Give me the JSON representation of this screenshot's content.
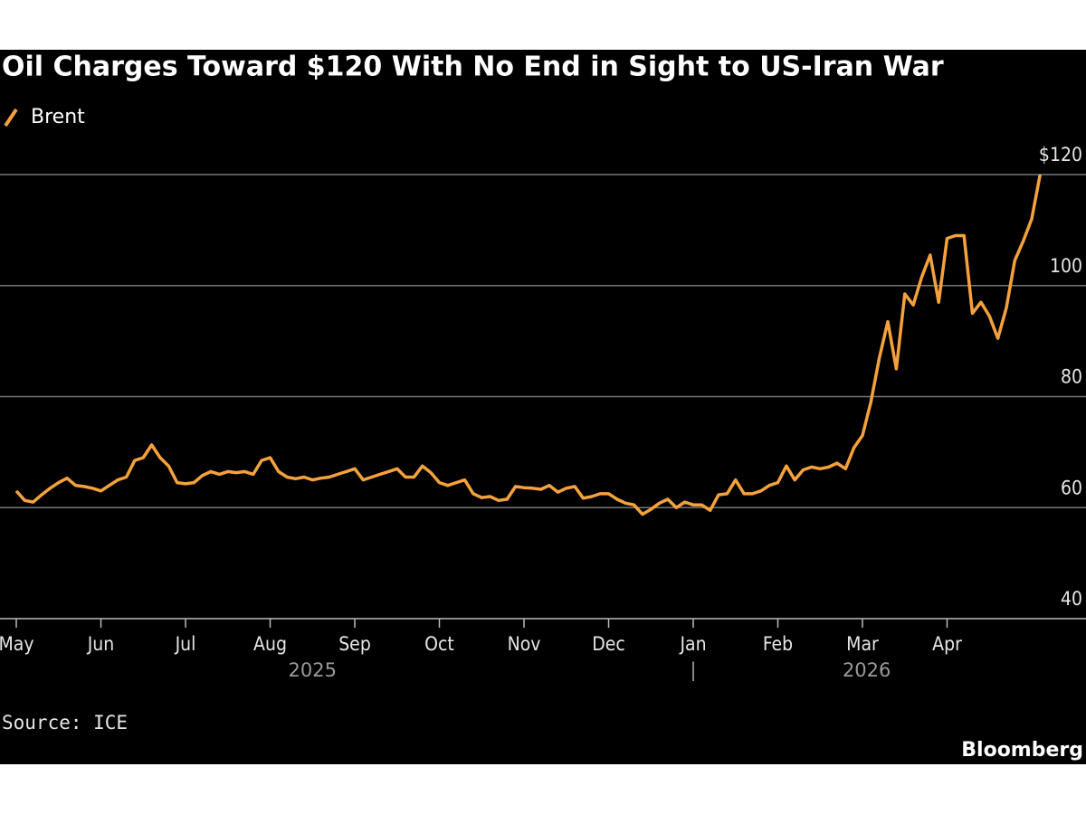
{
  "chart_data": {
    "type": "line",
    "title": "Oil Charges Toward $120 With No End in Sight to US-Iran War",
    "source": "Source: ICE",
    "brand": "Bloomberg",
    "categories": [
      "May",
      null,
      null,
      null,
      null,
      null,
      null,
      null,
      null,
      null,
      "Jun",
      null,
      null,
      null,
      null,
      null,
      null,
      null,
      null,
      null,
      "Jul",
      null,
      null,
      null,
      null,
      null,
      null,
      null,
      null,
      null,
      "Aug",
      null,
      null,
      null,
      null,
      null,
      null,
      null,
      null,
      null,
      "Sep",
      null,
      null,
      null,
      null,
      null,
      null,
      null,
      null,
      null,
      "Oct",
      null,
      null,
      null,
      null,
      null,
      null,
      null,
      null,
      null,
      "Nov",
      null,
      null,
      null,
      null,
      null,
      null,
      null,
      null,
      null,
      "Dec",
      null,
      null,
      null,
      null,
      null,
      null,
      null,
      null,
      null,
      "Jan",
      null,
      null,
      null,
      null,
      null,
      null,
      null,
      null,
      null,
      "Feb",
      null,
      null,
      null,
      null,
      null,
      null,
      null,
      null,
      null,
      "Mar",
      null,
      null,
      null,
      null,
      null,
      null,
      null,
      null,
      null,
      "Apr",
      null,
      null,
      null,
      null,
      null,
      null,
      null,
      null,
      null,
      null,
      null
    ],
    "x_group_labels": [
      "2025",
      "|",
      "2026"
    ],
    "series": [
      {
        "name": "Brent",
        "color": "#f5a23c",
        "values": [
          63,
          61.3,
          61,
          62.3,
          63.5,
          64.5,
          65.3,
          64,
          63.8,
          63.5,
          63,
          64,
          65,
          65.5,
          68.5,
          69,
          71.3,
          69,
          67.5,
          64.5,
          64.3,
          64.5,
          65.8,
          66.5,
          66,
          66.5,
          66.3,
          66.5,
          66,
          68.5,
          69,
          66.5,
          65.5,
          65.2,
          65.5,
          65,
          65.3,
          65.5,
          66,
          66.5,
          67,
          65,
          65.5,
          66,
          66.5,
          67,
          65.5,
          65.5,
          67.5,
          66.3,
          64.5,
          64,
          64.5,
          65,
          62.5,
          61.8,
          62,
          61.3,
          61.5,
          63.8,
          63.6,
          63.5,
          63.3,
          64,
          62.8,
          63.5,
          63.8,
          61.7,
          62,
          62.5,
          62.5,
          61.5,
          60.8,
          60.5,
          58.8,
          59.7,
          60.8,
          61.5,
          60,
          61,
          60.5,
          60.5,
          59.5,
          62.3,
          62.5,
          65,
          62.5,
          62.5,
          63,
          64,
          64.5,
          67.5,
          65,
          66.8,
          67.3,
          67,
          67.3,
          68,
          67,
          70.8,
          73,
          79,
          87,
          93.5,
          85,
          98.5,
          96.5,
          101.5,
          105.5,
          97,
          108.5,
          109,
          109,
          95,
          97,
          94.5,
          90.5,
          96,
          104.5,
          108,
          112,
          120
        ]
      }
    ],
    "ylim": [
      40,
      120
    ],
    "yticks": [
      40,
      60,
      80,
      100,
      {
        "value": 120,
        "label": "$120"
      }
    ],
    "grid": true
  }
}
